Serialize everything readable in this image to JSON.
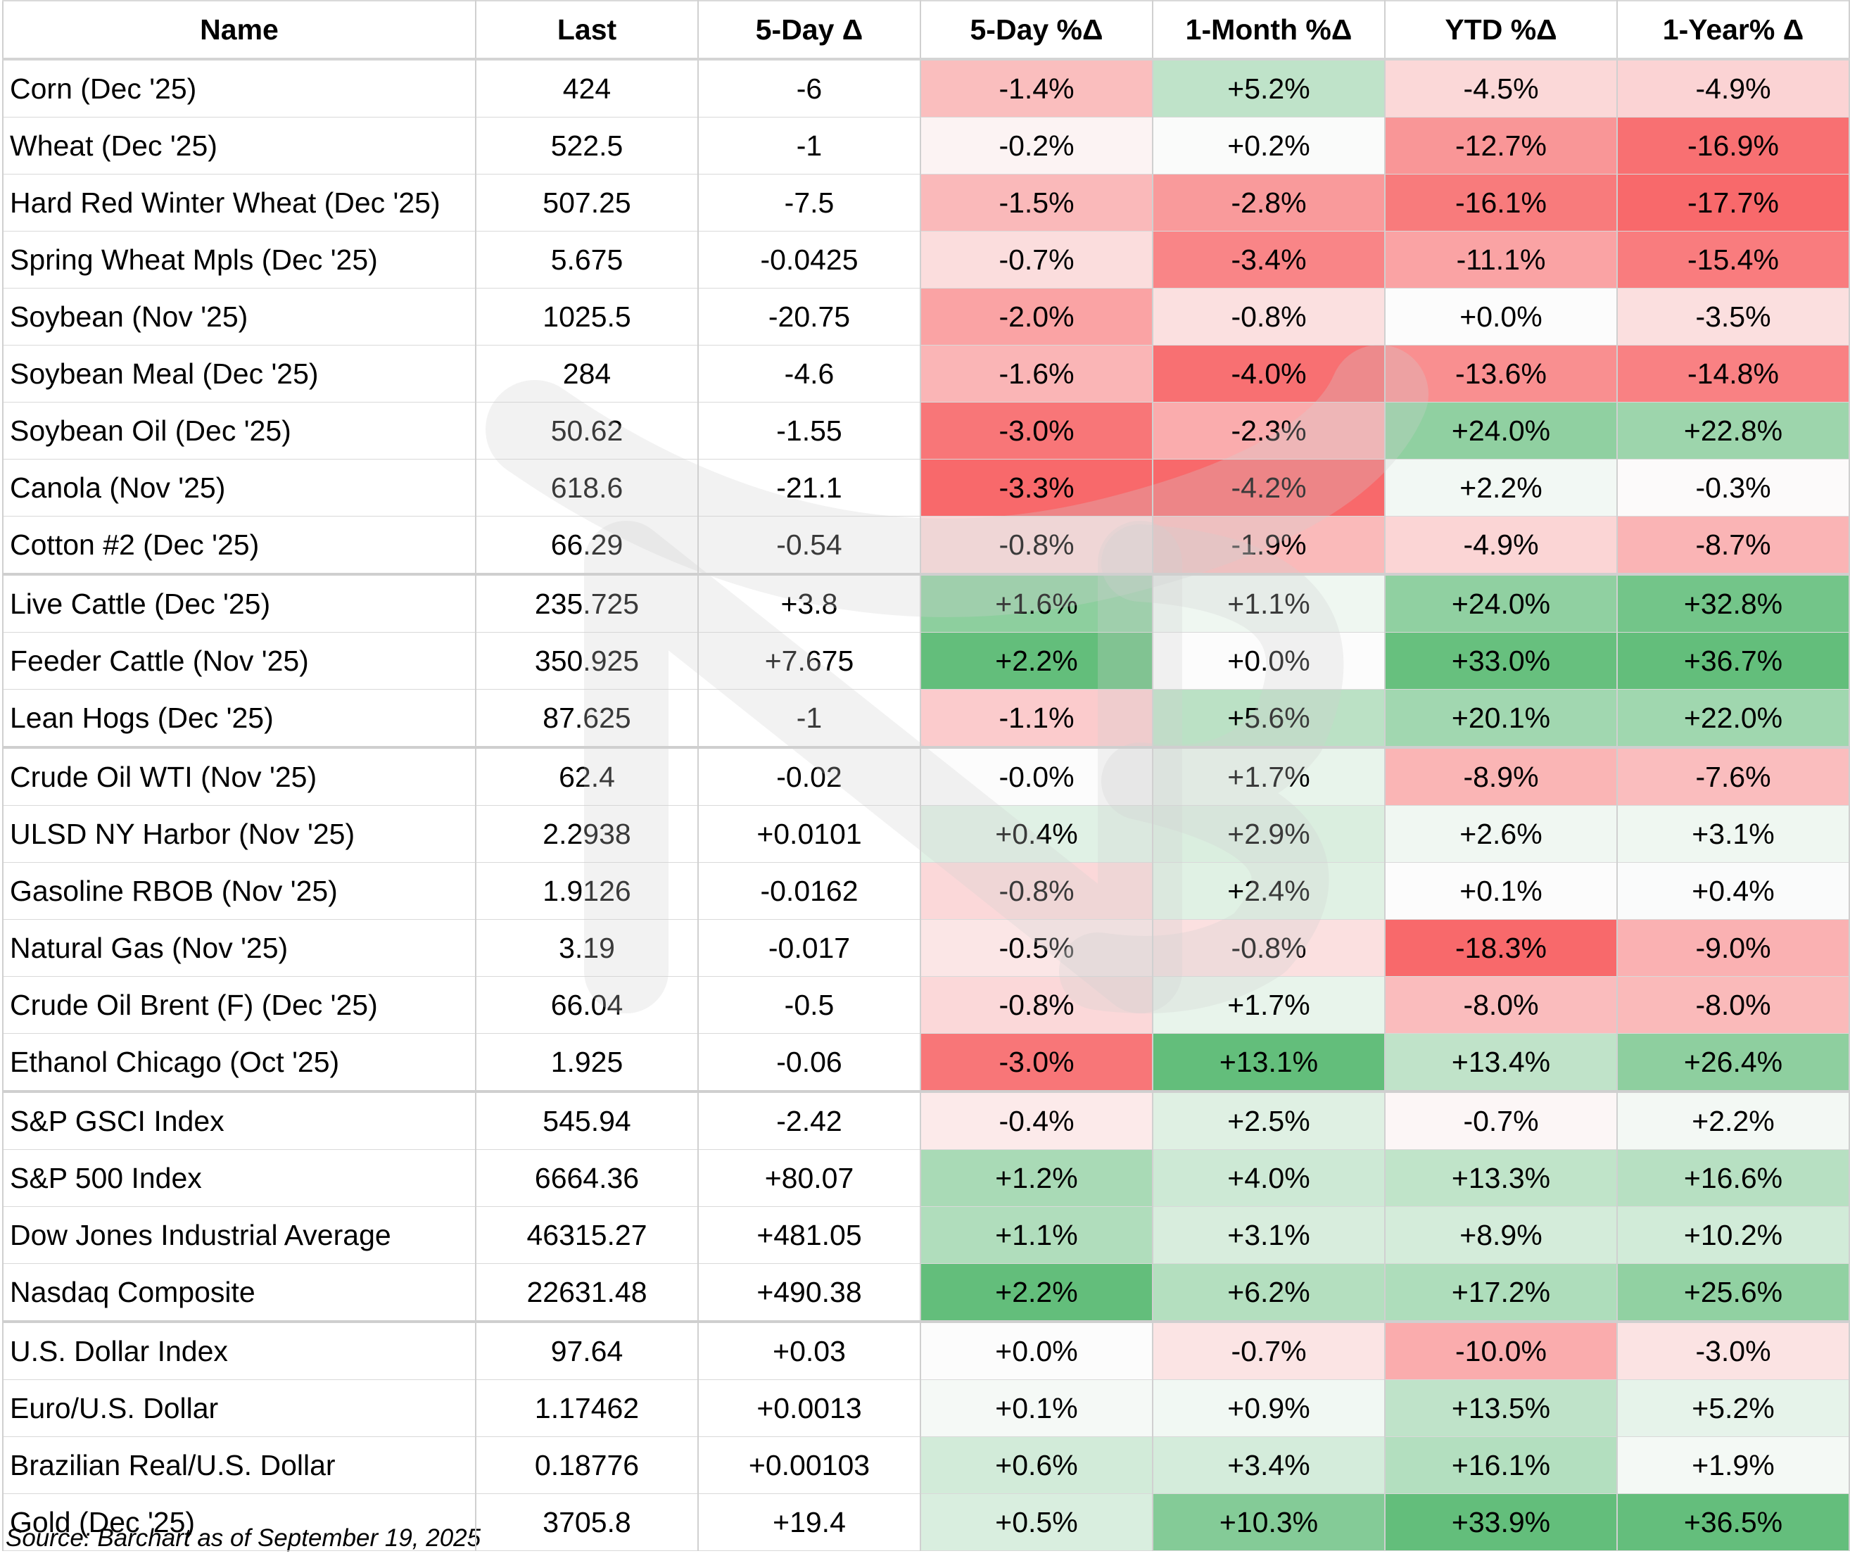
{
  "table": {
    "headers": [
      "Name",
      "Last",
      "5-Day Δ",
      "5-Day %Δ",
      "1-Month %Δ",
      "YTD %Δ",
      "1-Year% Δ"
    ],
    "group_starts": [
      9,
      12,
      18,
      22
    ],
    "rows": [
      {
        "name": "Corn (Dec '25)",
        "last": "424",
        "d5": "-6",
        "p5": "-1.4%",
        "p1m": "+5.2%",
        "ytd": "-4.5%",
        "p1y": "-4.9%"
      },
      {
        "name": "Wheat (Dec '25)",
        "last": "522.5",
        "d5": "-1",
        "p5": "-0.2%",
        "p1m": "+0.2%",
        "ytd": "-12.7%",
        "p1y": "-16.9%"
      },
      {
        "name": "Hard Red Winter Wheat (Dec '25)",
        "last": "507.25",
        "d5": "-7.5",
        "p5": "-1.5%",
        "p1m": "-2.8%",
        "ytd": "-16.1%",
        "p1y": "-17.7%"
      },
      {
        "name": "Spring Wheat Mpls (Dec '25)",
        "last": "5.675",
        "d5": "-0.0425",
        "p5": "-0.7%",
        "p1m": "-3.4%",
        "ytd": "-11.1%",
        "p1y": "-15.4%"
      },
      {
        "name": "Soybean (Nov '25)",
        "last": "1025.5",
        "d5": "-20.75",
        "p5": "-2.0%",
        "p1m": "-0.8%",
        "ytd": "+0.0%",
        "p1y": "-3.5%"
      },
      {
        "name": "Soybean Meal (Dec '25)",
        "last": "284",
        "d5": "-4.6",
        "p5": "-1.6%",
        "p1m": "-4.0%",
        "ytd": "-13.6%",
        "p1y": "-14.8%"
      },
      {
        "name": "Soybean Oil (Dec '25)",
        "last": "50.62",
        "d5": "-1.55",
        "p5": "-3.0%",
        "p1m": "-2.3%",
        "ytd": "+24.0%",
        "p1y": "+22.8%"
      },
      {
        "name": "Canola (Nov '25)",
        "last": "618.6",
        "d5": "-21.1",
        "p5": "-3.3%",
        "p1m": "-4.2%",
        "ytd": "+2.2%",
        "p1y": "-0.3%"
      },
      {
        "name": "Cotton #2 (Dec '25)",
        "last": "66.29",
        "d5": "-0.54",
        "p5": "-0.8%",
        "p1m": "-1.9%",
        "ytd": "-4.9%",
        "p1y": "-8.7%"
      },
      {
        "name": "Live Cattle (Dec '25)",
        "last": "235.725",
        "d5": "+3.8",
        "p5": "+1.6%",
        "p1m": "+1.1%",
        "ytd": "+24.0%",
        "p1y": "+32.8%"
      },
      {
        "name": "Feeder Cattle (Nov '25)",
        "last": "350.925",
        "d5": "+7.675",
        "p5": "+2.2%",
        "p1m": "+0.0%",
        "ytd": "+33.0%",
        "p1y": "+36.7%"
      },
      {
        "name": "Lean Hogs (Dec '25)",
        "last": "87.625",
        "d5": "-1",
        "p5": "-1.1%",
        "p1m": "+5.6%",
        "ytd": "+20.1%",
        "p1y": "+22.0%"
      },
      {
        "name": "Crude Oil WTI (Nov '25)",
        "last": "62.4",
        "d5": "-0.02",
        "p5": "-0.0%",
        "p1m": "+1.7%",
        "ytd": "-8.9%",
        "p1y": "-7.6%"
      },
      {
        "name": "ULSD NY Harbor (Nov '25)",
        "last": "2.2938",
        "d5": "+0.0101",
        "p5": "+0.4%",
        "p1m": "+2.9%",
        "ytd": "+2.6%",
        "p1y": "+3.1%"
      },
      {
        "name": "Gasoline RBOB (Nov '25)",
        "last": "1.9126",
        "d5": "-0.0162",
        "p5": "-0.8%",
        "p1m": "+2.4%",
        "ytd": "+0.1%",
        "p1y": "+0.4%"
      },
      {
        "name": "Natural Gas (Nov '25)",
        "last": "3.19",
        "d5": "-0.017",
        "p5": "-0.5%",
        "p1m": "-0.8%",
        "ytd": "-18.3%",
        "p1y": "-9.0%"
      },
      {
        "name": "Crude Oil Brent (F) (Dec '25)",
        "last": "66.04",
        "d5": "-0.5",
        "p5": "-0.8%",
        "p1m": "+1.7%",
        "ytd": "-8.0%",
        "p1y": "-8.0%"
      },
      {
        "name": "Ethanol Chicago (Oct '25)",
        "last": "1.925",
        "d5": "-0.06",
        "p5": "-3.0%",
        "p1m": "+13.1%",
        "ytd": "+13.4%",
        "p1y": "+26.4%"
      },
      {
        "name": "S&P GSCI Index",
        "last": "545.94",
        "d5": "-2.42",
        "p5": "-0.4%",
        "p1m": "+2.5%",
        "ytd": "-0.7%",
        "p1y": "+2.2%"
      },
      {
        "name": "S&P 500 Index",
        "last": "6664.36",
        "d5": "+80.07",
        "p5": "+1.2%",
        "p1m": "+4.0%",
        "ytd": "+13.3%",
        "p1y": "+16.6%"
      },
      {
        "name": "Dow Jones Industrial Average",
        "last": "46315.27",
        "d5": "+481.05",
        "p5": "+1.1%",
        "p1m": "+3.1%",
        "ytd": "+8.9%",
        "p1y": "+10.2%"
      },
      {
        "name": "Nasdaq Composite",
        "last": "22631.48",
        "d5": "+490.38",
        "p5": "+2.2%",
        "p1m": "+6.2%",
        "ytd": "+17.2%",
        "p1y": "+25.6%"
      },
      {
        "name": "U.S. Dollar Index",
        "last": "97.64",
        "d5": "+0.03",
        "p5": "+0.0%",
        "p1m": "-0.7%",
        "ytd": "-10.0%",
        "p1y": "-3.0%"
      },
      {
        "name": "Euro/U.S. Dollar",
        "last": "1.17462",
        "d5": "+0.0013",
        "p5": "+0.1%",
        "p1m": "+0.9%",
        "ytd": "+13.5%",
        "p1y": "+5.2%"
      },
      {
        "name": "Brazilian Real/U.S. Dollar",
        "last": "0.18776",
        "d5": "+0.00103",
        "p5": "+0.6%",
        "p1m": "+3.4%",
        "ytd": "+16.1%",
        "p1y": "+1.9%"
      },
      {
        "name": "Gold (Dec '25)",
        "last": "3705.8",
        "d5": "+19.4",
        "p5": "+0.5%",
        "p1m": "+10.3%",
        "ytd": "+33.9%",
        "p1y": "+36.5%"
      }
    ]
  },
  "footer": {
    "source": "Source: Barchart as of September 19, 2025"
  },
  "colors": {
    "neutral": "#fcfcfc",
    "strong_red": "#f8696b",
    "strong_green": "#63be7b",
    "header_bg": "#ffffff",
    "watermark": "#d2d2d2"
  }
}
